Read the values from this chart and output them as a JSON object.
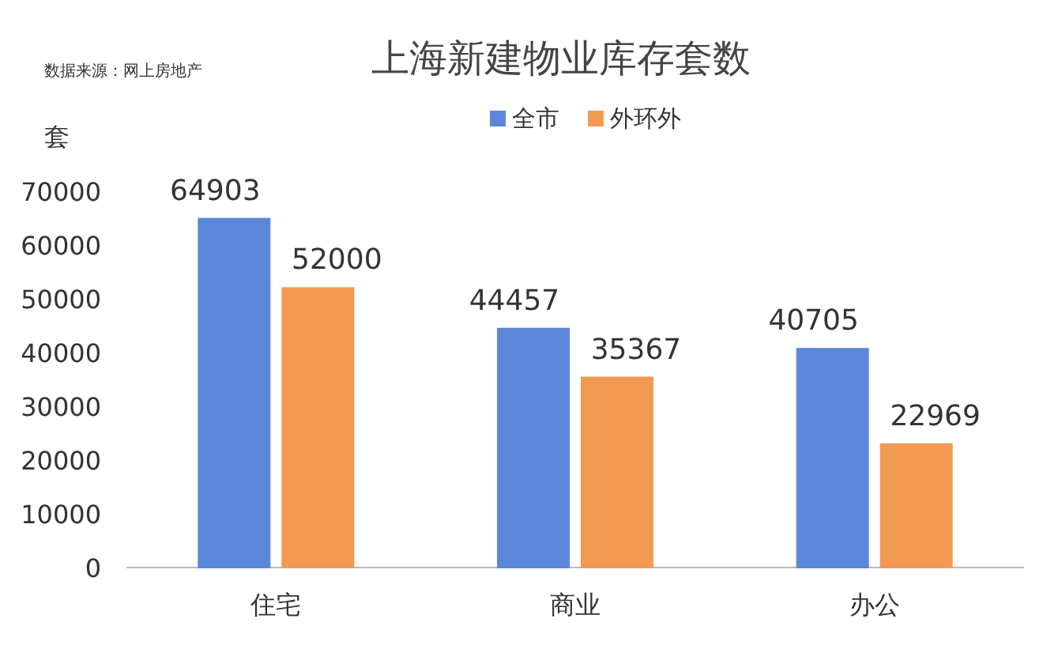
{
  "chart_data": {
    "type": "bar",
    "title": "上海新建物业库存套数",
    "ylabel": "套",
    "annotations": [
      "数据来源：网上房地产"
    ],
    "categories": [
      "住宅",
      "商业",
      "办公"
    ],
    "series": [
      {
        "name": "全市",
        "color": "#5b87d9",
        "values": [
          64903,
          44457,
          40705
        ]
      },
      {
        "name": "外环外",
        "color": "#f29a52",
        "values": [
          52000,
          35367,
          22969
        ]
      }
    ],
    "ylim": [
      0,
      70000
    ],
    "yticks": [
      0,
      10000,
      20000,
      30000,
      40000,
      50000,
      60000,
      70000
    ],
    "grid": false,
    "legend": "top",
    "data_labels": true
  }
}
